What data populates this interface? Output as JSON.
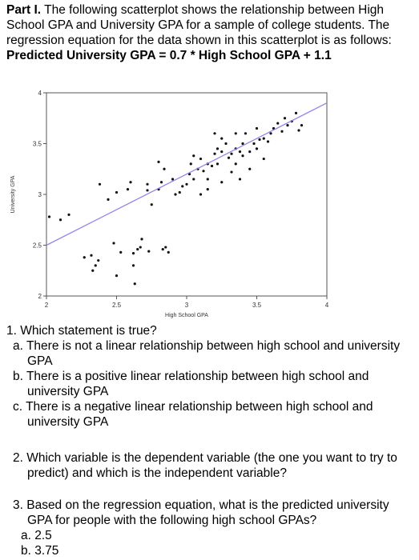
{
  "part_label": "Part I.",
  "intro_text": " The following scatterplot shows the relationship between High School GPA and University GPA for a sample of college students.  The regression equation for the data shown in this scatterplot is as follows:  ",
  "equation": "Predicted University GPA = 0.7 * High School GPA + 1.1",
  "chart_data": {
    "type": "scatter",
    "xlabel": "High School GPA",
    "ylabel": "University GPA",
    "xlim": [
      2,
      4
    ],
    "ylim": [
      2,
      4
    ],
    "xticks": [
      "2",
      "2.5",
      "3",
      "3.5",
      "4"
    ],
    "yticks": [
      "2",
      "2.5",
      "3",
      "3.5",
      "4"
    ],
    "regression": {
      "slope": 0.7,
      "intercept": 1.1
    },
    "points": [
      [
        2.02,
        2.78
      ],
      [
        2.1,
        2.75
      ],
      [
        2.16,
        2.8
      ],
      [
        2.27,
        2.38
      ],
      [
        2.33,
        2.25
      ],
      [
        2.35,
        2.3
      ],
      [
        2.37,
        2.35
      ],
      [
        2.32,
        2.4
      ],
      [
        2.38,
        3.1
      ],
      [
        2.44,
        2.95
      ],
      [
        2.48,
        2.52
      ],
      [
        2.5,
        2.2
      ],
      [
        2.53,
        2.43
      ],
      [
        2.5,
        3.02
      ],
      [
        2.58,
        3.05
      ],
      [
        2.6,
        3.12
      ],
      [
        2.62,
        2.3
      ],
      [
        2.62,
        2.42
      ],
      [
        2.65,
        2.46
      ],
      [
        2.63,
        2.12
      ],
      [
        2.67,
        2.48
      ],
      [
        2.68,
        2.56
      ],
      [
        2.73,
        2.44
      ],
      [
        2.72,
        3.1
      ],
      [
        2.72,
        3.04
      ],
      [
        2.75,
        2.9
      ],
      [
        2.8,
        3.05
      ],
      [
        2.82,
        3.12
      ],
      [
        2.83,
        2.46
      ],
      [
        2.85,
        2.48
      ],
      [
        2.87,
        2.43
      ],
      [
        2.8,
        3.32
      ],
      [
        2.84,
        3.25
      ],
      [
        2.92,
        3.0
      ],
      [
        2.95,
        3.02
      ],
      [
        2.97,
        3.08
      ],
      [
        3.0,
        3.1
      ],
      [
        3.02,
        3.2
      ],
      [
        3.03,
        3.3
      ],
      [
        3.05,
        3.38
      ],
      [
        3.05,
        3.15
      ],
      [
        3.08,
        3.25
      ],
      [
        3.1,
        3.35
      ],
      [
        3.12,
        3.23
      ],
      [
        3.15,
        3.3
      ],
      [
        3.18,
        3.28
      ],
      [
        3.2,
        3.4
      ],
      [
        3.22,
        3.45
      ],
      [
        3.25,
        3.42
      ],
      [
        3.22,
        3.3
      ],
      [
        3.28,
        3.5
      ],
      [
        3.3,
        3.36
      ],
      [
        3.32,
        3.4
      ],
      [
        3.35,
        3.45
      ],
      [
        3.35,
        3.3
      ],
      [
        3.38,
        3.42
      ],
      [
        3.4,
        3.5
      ],
      [
        3.42,
        3.6
      ],
      [
        3.45,
        3.25
      ],
      [
        3.48,
        3.5
      ],
      [
        3.5,
        3.45
      ],
      [
        3.52,
        3.54
      ],
      [
        3.55,
        3.55
      ],
      [
        3.58,
        3.52
      ],
      [
        3.6,
        3.6
      ],
      [
        3.62,
        3.65
      ],
      [
        3.65,
        3.7
      ],
      [
        3.68,
        3.62
      ],
      [
        3.7,
        3.75
      ],
      [
        3.72,
        3.68
      ],
      [
        3.75,
        3.72
      ],
      [
        3.78,
        3.8
      ],
      [
        3.8,
        3.63
      ],
      [
        3.82,
        3.68
      ],
      [
        3.15,
        3.05
      ],
      [
        3.25,
        3.12
      ],
      [
        3.32,
        3.22
      ],
      [
        3.4,
        3.38
      ],
      [
        3.45,
        3.42
      ],
      [
        3.5,
        3.65
      ],
      [
        3.1,
        3.0
      ],
      [
        3.2,
        3.6
      ],
      [
        3.38,
        3.15
      ],
      [
        3.55,
        3.35
      ],
      [
        3.15,
        3.15
      ],
      [
        3.25,
        3.55
      ],
      [
        2.9,
        3.15
      ],
      [
        3.35,
        3.6
      ]
    ]
  },
  "q1": {
    "text": "1. Which statement is true?",
    "a": "a. There is not a linear relationship between high school and university GPA",
    "b": "b. There is a positive linear relationship between high school and university GPA",
    "c": "c. There is a negative linear relationship between high school and university GPA"
  },
  "q2": {
    "text": "2. Which variable is the dependent variable (the one you want to try to predict) and which is the independent variable?"
  },
  "q3": {
    "text": "3. Based on the regression equation, what is the predicted university GPA for people with the following high school GPAs?",
    "a": "a. 2.5",
    "b": "b. 3.75"
  }
}
